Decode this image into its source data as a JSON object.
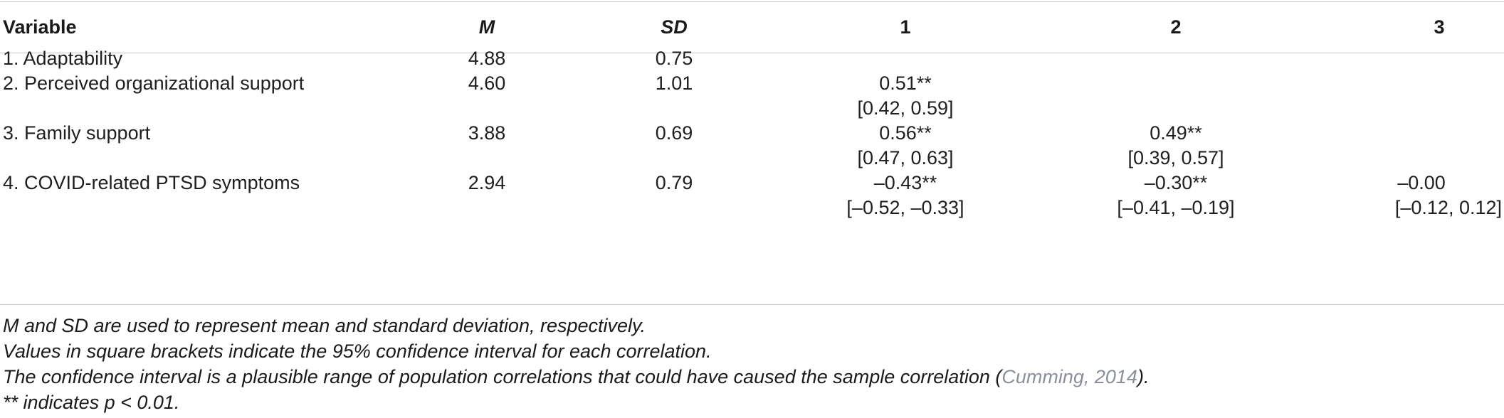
{
  "table": {
    "headers": {
      "variable": "Variable",
      "m": "M",
      "sd": "SD",
      "c1": "1",
      "c2": "2",
      "c3": "3"
    },
    "rows": [
      {
        "variable": "1. Adaptability",
        "m": "4.88",
        "sd": "0.75",
        "c1": "",
        "c1_ci": "",
        "c2": "",
        "c2_ci": "",
        "c3": "",
        "c3_ci": ""
      },
      {
        "variable": "2. Perceived organizational support",
        "m": "4.60",
        "sd": "1.01",
        "c1": "0.51**",
        "c1_ci": "[0.42, 0.59]",
        "c2": "",
        "c2_ci": "",
        "c3": "",
        "c3_ci": ""
      },
      {
        "variable": "3. Family support",
        "m": "3.88",
        "sd": "0.69",
        "c1": "0.56**",
        "c1_ci": "[0.47, 0.63]",
        "c2": "0.49**",
        "c2_ci": "[0.39, 0.57]",
        "c3": "",
        "c3_ci": ""
      },
      {
        "variable": "4. COVID-related PTSD symptoms",
        "m": "2.94",
        "sd": "0.79",
        "c1": "–0.43**",
        "c1_ci": "[–0.52, –0.33]",
        "c2": "–0.30**",
        "c2_ci": "[–0.41, –0.19]",
        "c3": "–0.00",
        "c3_ci": "[–0.12, 0.12]"
      }
    ]
  },
  "notes": {
    "line1": "M and SD are used to represent mean and standard deviation, respectively.",
    "line2": "Values in square brackets indicate the 95% confidence interval for each correlation.",
    "line3_before": "The confidence interval is a plausible range of population correlations that could have caused the sample correlation (",
    "line3_cite": "Cumming, 2014",
    "line3_after": ").",
    "line4": "** indicates p < 0.01."
  },
  "colors": {
    "text": "#1f1f1f",
    "rule": "#c8c8c8",
    "citation": "#8a8f99"
  }
}
